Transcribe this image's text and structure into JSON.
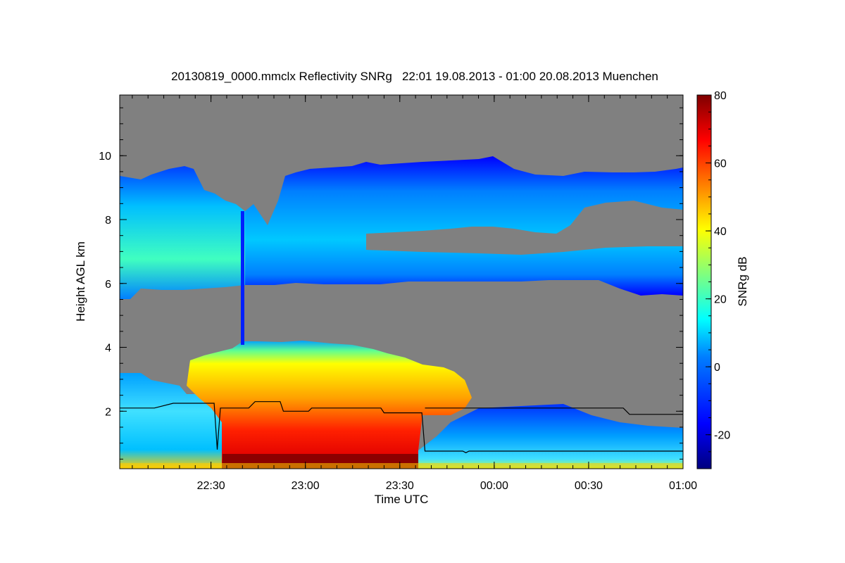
{
  "chart_data": {
    "type": "heatmap",
    "title": "20130819_0000.mmclx Reflectivity SNRg   22:01 19.08.2013 - 01:00 20.08.2013 Muenchen",
    "xlabel": "Time UTC",
    "ylabel": "Height AGL km",
    "xlim": [
      "22:01",
      "01:00"
    ],
    "ylim": [
      0.2,
      11.9
    ],
    "x_tick_labels": [
      "22:30",
      "23:00",
      "23:30",
      "00:00",
      "00:30",
      "01:00"
    ],
    "y_tick_labels": [
      "2",
      "4",
      "6",
      "8",
      "10"
    ],
    "colorbar": {
      "label": "SNRg dB",
      "range": [
        -30,
        80
      ],
      "tick_labels": [
        "-20",
        "0",
        "20",
        "40",
        "60",
        "80"
      ]
    },
    "background_color": "#808080",
    "boundary_line": {
      "color": "#000000",
      "points": [
        [
          "22:01",
          2.1
        ],
        [
          "22:12",
          2.1
        ],
        [
          "22:18",
          2.25
        ],
        [
          "22:31",
          2.25
        ],
        [
          "22:32",
          0.8
        ],
        [
          "22:33",
          2.1
        ],
        [
          "22:42",
          2.1
        ],
        [
          "22:44",
          2.3
        ],
        [
          "22:52",
          2.3
        ],
        [
          "22:53",
          2.0
        ],
        [
          "23:01",
          2.0
        ],
        [
          "23:02",
          2.1
        ],
        [
          "23:24",
          2.1
        ],
        [
          "23:25",
          1.95
        ],
        [
          "23:37",
          1.95
        ],
        [
          "23:38",
          0.75
        ],
        [
          "23:50",
          0.75
        ],
        [
          "23:51",
          0.7
        ],
        [
          "23:52",
          0.75
        ],
        [
          "00:40",
          0.75
        ],
        [
          "01:00",
          0.75
        ]
      ],
      "upper_points": [
        [
          "23:38",
          2.1
        ],
        [
          "00:41",
          2.1
        ],
        [
          "00:43",
          1.9
        ],
        [
          "01:00",
          1.9
        ]
      ]
    },
    "colors": {
      "scale": [
        "#00007f",
        "#0000ff",
        "#007fff",
        "#00ffff",
        "#7fff7f",
        "#ffff00",
        "#ff7f00",
        "#ff0000",
        "#7f0000"
      ]
    }
  }
}
